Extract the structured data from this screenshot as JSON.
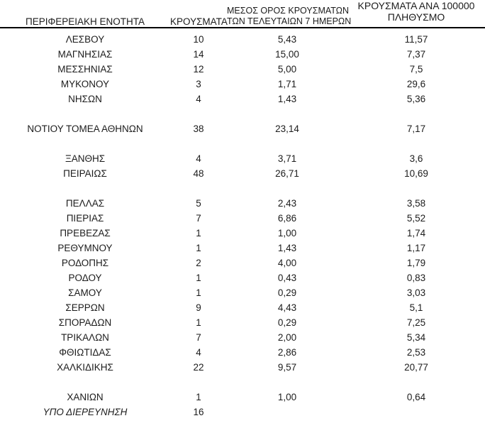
{
  "table": {
    "columns": {
      "region": "ΠΕΡΙΦΕΡΕΙΑΚΗ ΕΝΟΤΗΤΑ",
      "cases": "ΚΡΟΥΣΜΑΤΑ",
      "avg_7day_line1": "ΜΕΣΟΣ ΟΡΟΣ ΚΡΟΥΣΜΑΤΩΝ",
      "avg_7day_line2": "ΤΩΝ ΤΕΛΕΥΤΑΙΩΝ 7 ΗΜΕΡΩΝ",
      "per_100k_line1": "ΚΡΟΥΣΜΑΤΑ ΑΝΑ 100000",
      "per_100k_line2": "ΠΛΗΘΥΣΜΟ"
    },
    "text_color": "#1c1c1c",
    "rule_color": "#000000",
    "rows": [
      {
        "region": "ΛΕΣΒΟΥ",
        "cases": "10",
        "avg_7day": "5,43",
        "per_100k": "11,57"
      },
      {
        "region": "ΜΑΓΝΗΣΙΑΣ",
        "cases": "14",
        "avg_7day": "15,00",
        "per_100k": "7,37"
      },
      {
        "region": "ΜΕΣΣΗΝΙΑΣ",
        "cases": "12",
        "avg_7day": "5,00",
        "per_100k": "7,5"
      },
      {
        "region": "ΜΥΚΟΝΟΥ",
        "cases": "3",
        "avg_7day": "1,71",
        "per_100k": "29,6"
      },
      {
        "region": "ΝΗΣΩΝ",
        "cases": "4",
        "avg_7day": "1,43",
        "per_100k": "5,36"
      },
      {
        "spacer": true
      },
      {
        "region": "ΝΟΤΙΟΥ ΤΟΜΕΑ ΑΘΗΝΩΝ",
        "cases": "38",
        "avg_7day": "23,14",
        "per_100k": "7,17"
      },
      {
        "spacer": true
      },
      {
        "region": "ΞΑΝΘΗΣ",
        "cases": "4",
        "avg_7day": "3,71",
        "per_100k": "3,6"
      },
      {
        "region": "ΠΕΙΡΑΙΩΣ",
        "cases": "48",
        "avg_7day": "26,71",
        "per_100k": "10,69"
      },
      {
        "spacer": true
      },
      {
        "region": "ΠΕΛΛΑΣ",
        "cases": "5",
        "avg_7day": "2,43",
        "per_100k": "3,58"
      },
      {
        "region": "ΠΙΕΡΙΑΣ",
        "cases": "7",
        "avg_7day": "6,86",
        "per_100k": "5,52"
      },
      {
        "region": "ΠΡΕΒΕΖΑΣ",
        "cases": "1",
        "avg_7day": "1,00",
        "per_100k": "1,74"
      },
      {
        "region": "ΡΕΘΥΜΝΟΥ",
        "cases": "1",
        "avg_7day": "1,43",
        "per_100k": "1,17"
      },
      {
        "region": "ΡΟΔΟΠΗΣ",
        "cases": "2",
        "avg_7day": "4,00",
        "per_100k": "1,79"
      },
      {
        "region": "ΡΟΔΟΥ",
        "cases": "1",
        "avg_7day": "0,43",
        "per_100k": "0,83"
      },
      {
        "region": "ΣΑΜΟΥ",
        "cases": "1",
        "avg_7day": "0,29",
        "per_100k": "3,03"
      },
      {
        "region": "ΣΕΡΡΩΝ",
        "cases": "9",
        "avg_7day": "4,43",
        "per_100k": "5,1"
      },
      {
        "region": "ΣΠΟΡΑΔΩΝ",
        "cases": "1",
        "avg_7day": "0,29",
        "per_100k": "7,25"
      },
      {
        "region": "ΤΡΙΚΑΛΩΝ",
        "cases": "7",
        "avg_7day": "2,00",
        "per_100k": "5,34"
      },
      {
        "region": "ΦΘΙΩΤΙΔΑΣ",
        "cases": "4",
        "avg_7day": "2,86",
        "per_100k": "2,53"
      },
      {
        "region": "ΧΑΛΚΙΔΙΚΗΣ",
        "cases": "22",
        "avg_7day": "9,57",
        "per_100k": "20,77"
      },
      {
        "spacer": true
      },
      {
        "region": "ΧΑΝΙΩΝ",
        "cases": "1",
        "avg_7day": "1,00",
        "per_100k": "0,64"
      },
      {
        "region": "ΥΠΟ ΔΙΕΡΕΥΝΗΣΗ",
        "cases": "16",
        "avg_7day": "",
        "per_100k": "",
        "style": "italic"
      }
    ]
  }
}
